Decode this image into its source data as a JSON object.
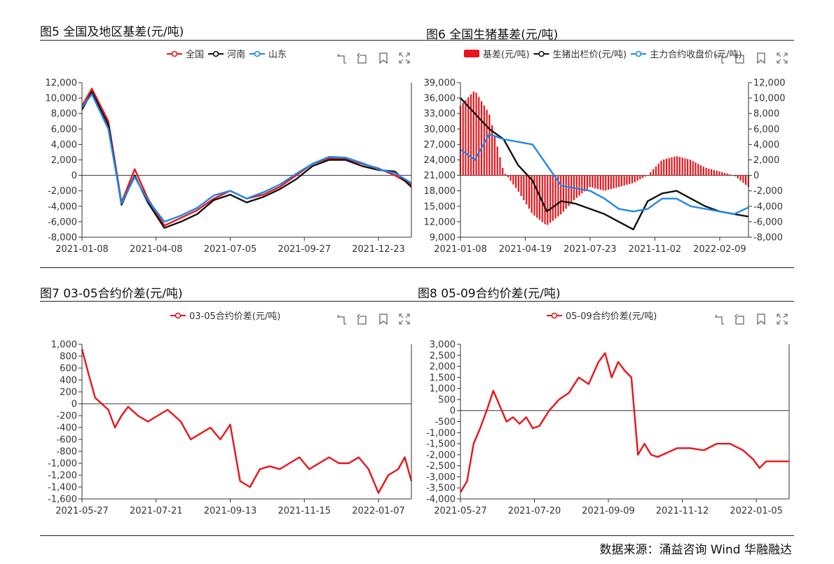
{
  "titles": {
    "fig5": "图5 全国及地区基差(元/吨)",
    "fig6": "图6 全国生猪基差(元/吨)",
    "fig7": "图7 03-05合约价差(元/吨)",
    "fig8": "图8 05-09合约价差(元/吨)"
  },
  "toolbox_icons": [
    "restore-icon",
    "back-icon",
    "bookmark-icon",
    "fullscreen-icon"
  ],
  "source": "数据来源：涌益咨询 Wind 华融融达",
  "colors": {
    "red": "#e8141a",
    "black": "#111111",
    "blue": "#1e88e5"
  },
  "chart_data": [
    {
      "id": "fig5",
      "type": "line",
      "legend": [
        "全国",
        "河南",
        "山东"
      ],
      "x_ticks": [
        "2021-01-08",
        "2021-04-08",
        "2021-07-05",
        "2021-09-27",
        "2021-12-23"
      ],
      "y_ticks": [
        "12,000",
        "10,000",
        "8,000",
        "6,000",
        "4,000",
        "2,000",
        "0",
        "-2,000",
        "-4,000",
        "-6,000",
        "-8,000"
      ],
      "ylim": [
        -8000,
        12000
      ],
      "x": [
        0,
        0.03,
        0.08,
        0.12,
        0.16,
        0.2,
        0.25,
        0.3,
        0.35,
        0.4,
        0.45,
        0.5,
        0.55,
        0.6,
        0.65,
        0.7,
        0.75,
        0.8,
        0.85,
        0.9,
        0.95,
        1.0
      ],
      "series": [
        {
          "name": "全国",
          "color": "#e8141a",
          "values": [
            9000,
            11200,
            7000,
            -3500,
            800,
            -3000,
            -6500,
            -5500,
            -4500,
            -3000,
            -2000,
            -3000,
            -2500,
            -1500,
            0,
            1500,
            2200,
            2100,
            1500,
            900,
            0,
            -1200
          ]
        },
        {
          "name": "河南",
          "color": "#111111",
          "values": [
            8500,
            10800,
            6500,
            -3800,
            0,
            -3500,
            -6800,
            -6000,
            -5000,
            -3200,
            -2500,
            -3500,
            -2800,
            -1800,
            -500,
            1200,
            2000,
            2000,
            1200,
            700,
            500,
            -1500
          ]
        },
        {
          "name": "山东",
          "color": "#1e88e5",
          "values": [
            8800,
            10500,
            6000,
            -3600,
            -200,
            -3200,
            -6000,
            -5200,
            -4200,
            -2600,
            -2000,
            -3000,
            -2200,
            -1200,
            200,
            1500,
            2400,
            2300,
            1600,
            800,
            300,
            -1000
          ]
        }
      ]
    },
    {
      "id": "fig6",
      "type": "bar+line",
      "legend": [
        "基差(元/吨)",
        "生猪出栏价(元/吨)",
        "主力合约收盘价(元/吨)"
      ],
      "x_ticks": [
        "2021-01-08",
        "2021-04-19",
        "2021-07-23",
        "2021-11-02",
        "2022-02-09"
      ],
      "y_left_ticks": [
        "39,000",
        "36,000",
        "33,000",
        "30,000",
        "27,000",
        "24,000",
        "21,000",
        "18,000",
        "15,000",
        "12,000",
        "9,000"
      ],
      "y_right_ticks": [
        "12,000",
        "10,000",
        "8,000",
        "6,000",
        "4,000",
        "2,000",
        "0",
        "-2,000",
        "-4,000",
        "-6,000",
        "-8,000"
      ],
      "ylim_left": [
        9000,
        39000
      ],
      "ylim_right": [
        -8000,
        12000
      ],
      "x": [
        0,
        0.05,
        0.1,
        0.15,
        0.2,
        0.25,
        0.3,
        0.35,
        0.4,
        0.45,
        0.5,
        0.55,
        0.6,
        0.65,
        0.7,
        0.75,
        0.8,
        0.85,
        0.9,
        0.95,
        1.0
      ],
      "basis": [
        9000,
        11000,
        8000,
        500,
        -2000,
        -5000,
        -6500,
        -5000,
        -3000,
        -1500,
        -2000,
        -1500,
        -1000,
        0,
        2000,
        2500,
        2000,
        1000,
        500,
        0,
        -1500
      ],
      "series": [
        {
          "name": "生猪出栏价(元/吨)",
          "color": "#111111",
          "values": [
            36000,
            33000,
            30000,
            28000,
            23000,
            20000,
            14000,
            16000,
            15500,
            14500,
            13500,
            12000,
            10500,
            16000,
            17500,
            18000,
            16500,
            15000,
            14000,
            13500,
            13000
          ]
        },
        {
          "name": "主力合约收盘价(元/吨)",
          "color": "#1e88e5",
          "values": [
            26000,
            24000,
            29000,
            28000,
            27500,
            27000,
            23000,
            19000,
            18500,
            18000,
            16500,
            14500,
            14000,
            14500,
            16500,
            16500,
            15000,
            14500,
            14000,
            13500,
            14800
          ]
        }
      ]
    },
    {
      "id": "fig7",
      "type": "line",
      "legend": [
        "03-05合约价差(元/吨)"
      ],
      "x_ticks": [
        "2021-05-27",
        "2021-07-21",
        "2021-09-13",
        "2021-11-15",
        "2022-01-07"
      ],
      "y_ticks": [
        "1,000",
        "800",
        "600",
        "400",
        "200",
        "0",
        "-200",
        "-400",
        "-600",
        "-800",
        "-1,000",
        "-1,200",
        "-1,400",
        "-1,600"
      ],
      "ylim": [
        -1600,
        1000
      ],
      "x": [
        0,
        0.02,
        0.04,
        0.06,
        0.08,
        0.1,
        0.12,
        0.14,
        0.17,
        0.2,
        0.23,
        0.26,
        0.3,
        0.33,
        0.36,
        0.39,
        0.42,
        0.45,
        0.48,
        0.51,
        0.54,
        0.57,
        0.6,
        0.63,
        0.66,
        0.69,
        0.72,
        0.75,
        0.78,
        0.81,
        0.84,
        0.87,
        0.9,
        0.93,
        0.96,
        0.98,
        1.0
      ],
      "series": [
        {
          "name": "03-05合约价差(元/吨)",
          "color": "#e8141a",
          "values": [
            920,
            500,
            100,
            0,
            -100,
            -400,
            -200,
            -50,
            -200,
            -300,
            -200,
            -100,
            -300,
            -600,
            -500,
            -400,
            -600,
            -350,
            -1300,
            -1400,
            -1100,
            -1050,
            -1100,
            -1000,
            -900,
            -1100,
            -1000,
            -900,
            -1000,
            -1000,
            -900,
            -1100,
            -1500,
            -1200,
            -1100,
            -900,
            -1300
          ]
        }
      ]
    },
    {
      "id": "fig8",
      "type": "line",
      "legend": [
        "05-09合约价差(元/吨)"
      ],
      "x_ticks": [
        "2021-05-27",
        "2021-07-20",
        "2021-09-09",
        "2021-11-12",
        "2022-01-05"
      ],
      "y_ticks": [
        "3,000",
        "2,500",
        "2,000",
        "1,500",
        "1,000",
        "500",
        "0",
        "-500",
        "-1,000",
        "-1,500",
        "-2,000",
        "-2,500",
        "-3,000",
        "-3,500",
        "-4,000"
      ],
      "ylim": [
        -4000,
        3000
      ],
      "x": [
        0,
        0.02,
        0.04,
        0.06,
        0.08,
        0.1,
        0.12,
        0.14,
        0.16,
        0.18,
        0.2,
        0.22,
        0.24,
        0.27,
        0.3,
        0.33,
        0.36,
        0.39,
        0.42,
        0.44,
        0.46,
        0.48,
        0.5,
        0.52,
        0.54,
        0.56,
        0.58,
        0.6,
        0.63,
        0.66,
        0.7,
        0.74,
        0.78,
        0.82,
        0.86,
        0.89,
        0.91,
        0.93,
        0.96,
        1.0
      ],
      "series": [
        {
          "name": "05-09合约价差(元/吨)",
          "color": "#e8141a",
          "values": [
            -3700,
            -3200,
            -1500,
            -800,
            0,
            900,
            200,
            -500,
            -300,
            -600,
            -300,
            -800,
            -700,
            0,
            500,
            800,
            1500,
            1200,
            2200,
            2600,
            1500,
            2200,
            1800,
            1500,
            -2000,
            -1500,
            -2000,
            -2100,
            -1900,
            -1700,
            -1700,
            -1800,
            -1500,
            -1500,
            -1800,
            -2200,
            -2600,
            -2300,
            -2300,
            -2300
          ]
        }
      ]
    }
  ]
}
